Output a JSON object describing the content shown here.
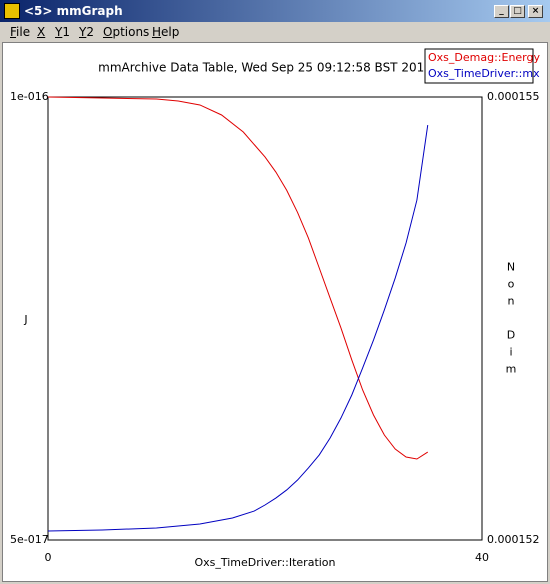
{
  "window": {
    "title": "<5> mmGraph",
    "menu": [
      "File",
      "X",
      "Y1",
      "Y2",
      "Options",
      "Help"
    ]
  },
  "chart_data": {
    "type": "line",
    "title": "mmArchive Data Table, Wed Sep 25 09:12:58 BST 2013",
    "xlabel": "Oxs_TimeDriver::Iteration",
    "ylabel": "J",
    "y2label": "Non Dim",
    "xlim": [
      0,
      40
    ],
    "xticks": [
      0,
      40
    ],
    "ylim": [
      5e-17,
      1e-16
    ],
    "yticks": [
      {
        "value": 1e-16,
        "label": "1e-016"
      },
      {
        "value": 5e-17,
        "label": "5e-017"
      }
    ],
    "y2lim": [
      0.000152,
      0.000155
    ],
    "y2ticks": [
      0.000155,
      0.000152
    ],
    "legend": "upper right",
    "series": [
      {
        "name": "Oxs_Demag::Energy",
        "color": "#e00000",
        "x": [
          0,
          5,
          10,
          12,
          14,
          16,
          18,
          20,
          21,
          22,
          23,
          24,
          25,
          26,
          27,
          28,
          29,
          30,
          31,
          32,
          33,
          34,
          35
        ],
        "values": [
          1e-16,
          9.989e-17,
          9.977e-17,
          9.955e-17,
          9.91e-17,
          9.797e-17,
          9.605e-17,
          9.323e-17,
          9.153e-17,
          8.947e-17,
          8.697e-17,
          8.408e-17,
          8.07e-17,
          7.731e-17,
          7.393e-17,
          7.032e-17,
          6.693e-17,
          6.411e-17,
          6.185e-17,
          6.027e-17,
          5.937e-17,
          5.914e-17,
          5.993e-17
        ]
      },
      {
        "name": "Oxs_TimeDriver::mx",
        "color": "#0000c0",
        "axis": "y2",
        "x": [
          0,
          5,
          10,
          14,
          17,
          19,
          20,
          21,
          22,
          23,
          24,
          25,
          26,
          27,
          28,
          29,
          30,
          31,
          32,
          33,
          34,
          35
        ],
        "values": [
          0.000152061,
          0.000152068,
          0.000152081,
          0.000152108,
          0.000152149,
          0.000152196,
          0.000152237,
          0.000152284,
          0.000152339,
          0.000152406,
          0.000152488,
          0.000152576,
          0.000152691,
          0.000152826,
          0.000152982,
          0.000153165,
          0.000153354,
          0.000153558,
          0.000153774,
          0.000154011,
          0.000154302,
          0.00015481
        ]
      }
    ]
  }
}
